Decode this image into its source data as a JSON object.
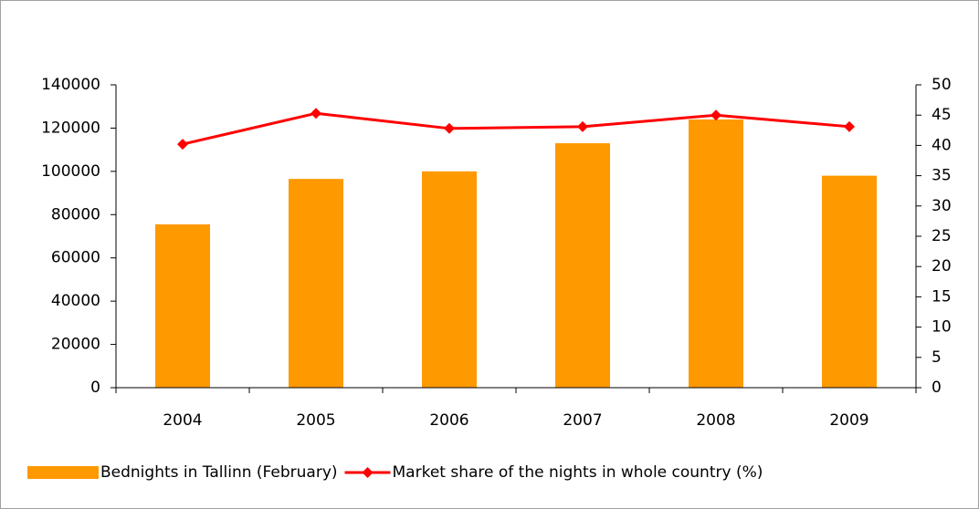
{
  "chart_data": {
    "type": "bar",
    "categories": [
      "2004",
      "2005",
      "2006",
      "2007",
      "2008",
      "2009"
    ],
    "series": [
      {
        "name": "Bednights in Tallinn (February)",
        "type": "bar",
        "color": "#ff9900",
        "values": [
          75500,
          96500,
          100000,
          113000,
          124000,
          98000
        ]
      },
      {
        "name": "Market share of the nights in whole country (%)",
        "type": "line",
        "color": "#ff0000",
        "axis": "y2",
        "values": [
          40.2,
          45.3,
          42.8,
          43.1,
          45.0,
          43.1
        ]
      }
    ],
    "ylim": [
      0,
      140000
    ],
    "yticks": [
      0,
      20000,
      40000,
      60000,
      80000,
      100000,
      120000,
      140000
    ],
    "y2lim": [
      0,
      50
    ],
    "y2ticks": [
      0,
      5,
      10,
      15,
      20,
      25,
      30,
      35,
      40,
      45,
      50
    ],
    "grid": false,
    "legend": "bottom"
  }
}
